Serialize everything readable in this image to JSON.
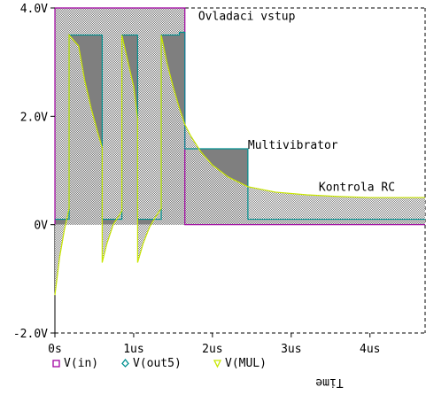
{
  "chart_data": {
    "type": "line",
    "x_unit": "us",
    "xlim": [
      0,
      4.7
    ],
    "ylim": [
      -2,
      4
    ],
    "grid": false,
    "legend_position": "bottom-left",
    "xlabel": "Time",
    "ylabel": "",
    "x_ticks": [
      {
        "value": 0,
        "label": "0s"
      },
      {
        "value": 1,
        "label": "1us"
      },
      {
        "value": 2,
        "label": "2us"
      },
      {
        "value": 3,
        "label": "3us"
      },
      {
        "value": 4,
        "label": "4us"
      }
    ],
    "y_ticks": [
      {
        "value": 4,
        "label": "4.0V"
      },
      {
        "value": 2,
        "label": "2.0V"
      },
      {
        "value": 0,
        "label": "0V"
      },
      {
        "value": -2,
        "label": "-2.0V"
      }
    ],
    "annotations": [
      {
        "text": "Ovladaci vstup",
        "x": 1.82,
        "y": 3.78
      },
      {
        "text": "Multivibrator",
        "x": 2.45,
        "y": 1.4
      },
      {
        "text": "Kontrola RC",
        "x": 3.35,
        "y": 0.62
      }
    ],
    "series": [
      {
        "name": "V(in)",
        "color": "#a000a0",
        "marker": "square",
        "x": [
          0,
          0,
          1.65,
          1.65,
          4.7
        ],
        "y": [
          0,
          4,
          4,
          0,
          0
        ]
      },
      {
        "name": "V(out5)",
        "color": "#009090",
        "marker": "diamond",
        "x": [
          0,
          0.18,
          0.18,
          0.3,
          0.3,
          0.6,
          0.6,
          0.85,
          0.85,
          1.05,
          1.05,
          1.35,
          1.35,
          1.58,
          1.58,
          1.65,
          1.65,
          2.45,
          2.45,
          4.7
        ],
        "y": [
          0.1,
          0.1,
          3.5,
          3.5,
          3.5,
          3.5,
          0.1,
          0.1,
          3.5,
          3.5,
          0.1,
          0.1,
          3.5,
          3.5,
          3.55,
          3.55,
          1.4,
          1.4,
          0.1,
          0.1
        ]
      },
      {
        "name": "V(MUL)",
        "color": "#c8e600",
        "marker": "triangle",
        "x": [
          0,
          0.06,
          0.12,
          0.18,
          0.18,
          0.3,
          0.38,
          0.46,
          0.54,
          0.6,
          0.6,
          0.66,
          0.74,
          0.85,
          0.85,
          0.92,
          1.0,
          1.05,
          1.05,
          1.12,
          1.2,
          1.28,
          1.35,
          1.35,
          1.42,
          1.5,
          1.58,
          1.65,
          1.72,
          1.85,
          2.0,
          2.2,
          2.45,
          2.8,
          3.2,
          3.6,
          4.0,
          4.4,
          4.7
        ],
        "y": [
          -1.3,
          -0.6,
          -0.1,
          0.3,
          3.5,
          3.3,
          2.65,
          2.15,
          1.72,
          1.42,
          -0.7,
          -0.35,
          0.0,
          0.25,
          3.5,
          3.05,
          2.55,
          1.95,
          -0.7,
          -0.35,
          -0.05,
          0.15,
          0.3,
          3.5,
          3.0,
          2.55,
          2.15,
          1.85,
          1.65,
          1.35,
          1.1,
          0.88,
          0.7,
          0.6,
          0.55,
          0.52,
          0.5,
          0.5,
          0.5
        ]
      }
    ]
  }
}
